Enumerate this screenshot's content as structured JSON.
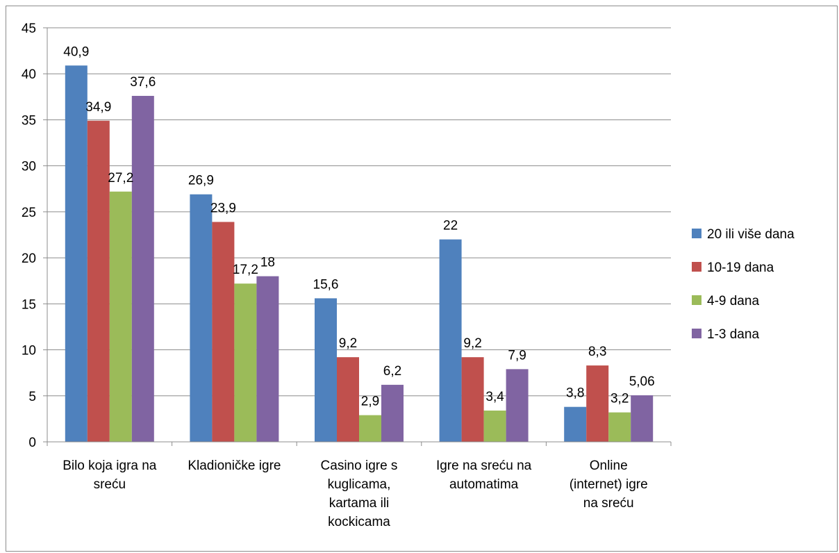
{
  "chart_data": {
    "type": "bar",
    "title": "",
    "xlabel": "",
    "ylabel": "",
    "ylim": [
      0,
      45
    ],
    "yticks": [
      0,
      5,
      10,
      15,
      20,
      25,
      30,
      35,
      40,
      45
    ],
    "grid": true,
    "legend_position": "right",
    "categories": [
      [
        "Bilo koja igra na",
        "sreću"
      ],
      [
        "Kladioničke igre"
      ],
      [
        "Casino igre s",
        "kuglicama,",
        "kartama ili",
        "kockicama"
      ],
      [
        "Igre na sreću na",
        "automatima"
      ],
      [
        "Online",
        "(internet) igre",
        "na sreću"
      ]
    ],
    "series": [
      {
        "name": "20 ili više dana",
        "color": "#4F81BD",
        "values": [
          40.9,
          26.9,
          15.6,
          22,
          3.8
        ],
        "labels": [
          "40,9",
          "26,9",
          "15,6",
          "22",
          "3,8"
        ]
      },
      {
        "name": "10-19 dana",
        "color": "#C0504D",
        "values": [
          34.9,
          23.9,
          9.2,
          9.2,
          8.3
        ],
        "labels": [
          "34,9",
          "23,9",
          "9,2",
          "9,2",
          "8,3"
        ]
      },
      {
        "name": "4-9 dana",
        "color": "#9BBB59",
        "values": [
          27.2,
          17.2,
          2.9,
          3.4,
          3.2
        ],
        "labels": [
          "27,2",
          "17,2",
          "2,9",
          "3,4",
          "3,2"
        ]
      },
      {
        "name": "1-3 dana",
        "color": "#8064A2",
        "values": [
          37.6,
          18,
          6.2,
          7.9,
          5.06
        ],
        "labels": [
          "37,6",
          "18",
          "6,2",
          "7,9",
          "5,06"
        ]
      }
    ]
  }
}
